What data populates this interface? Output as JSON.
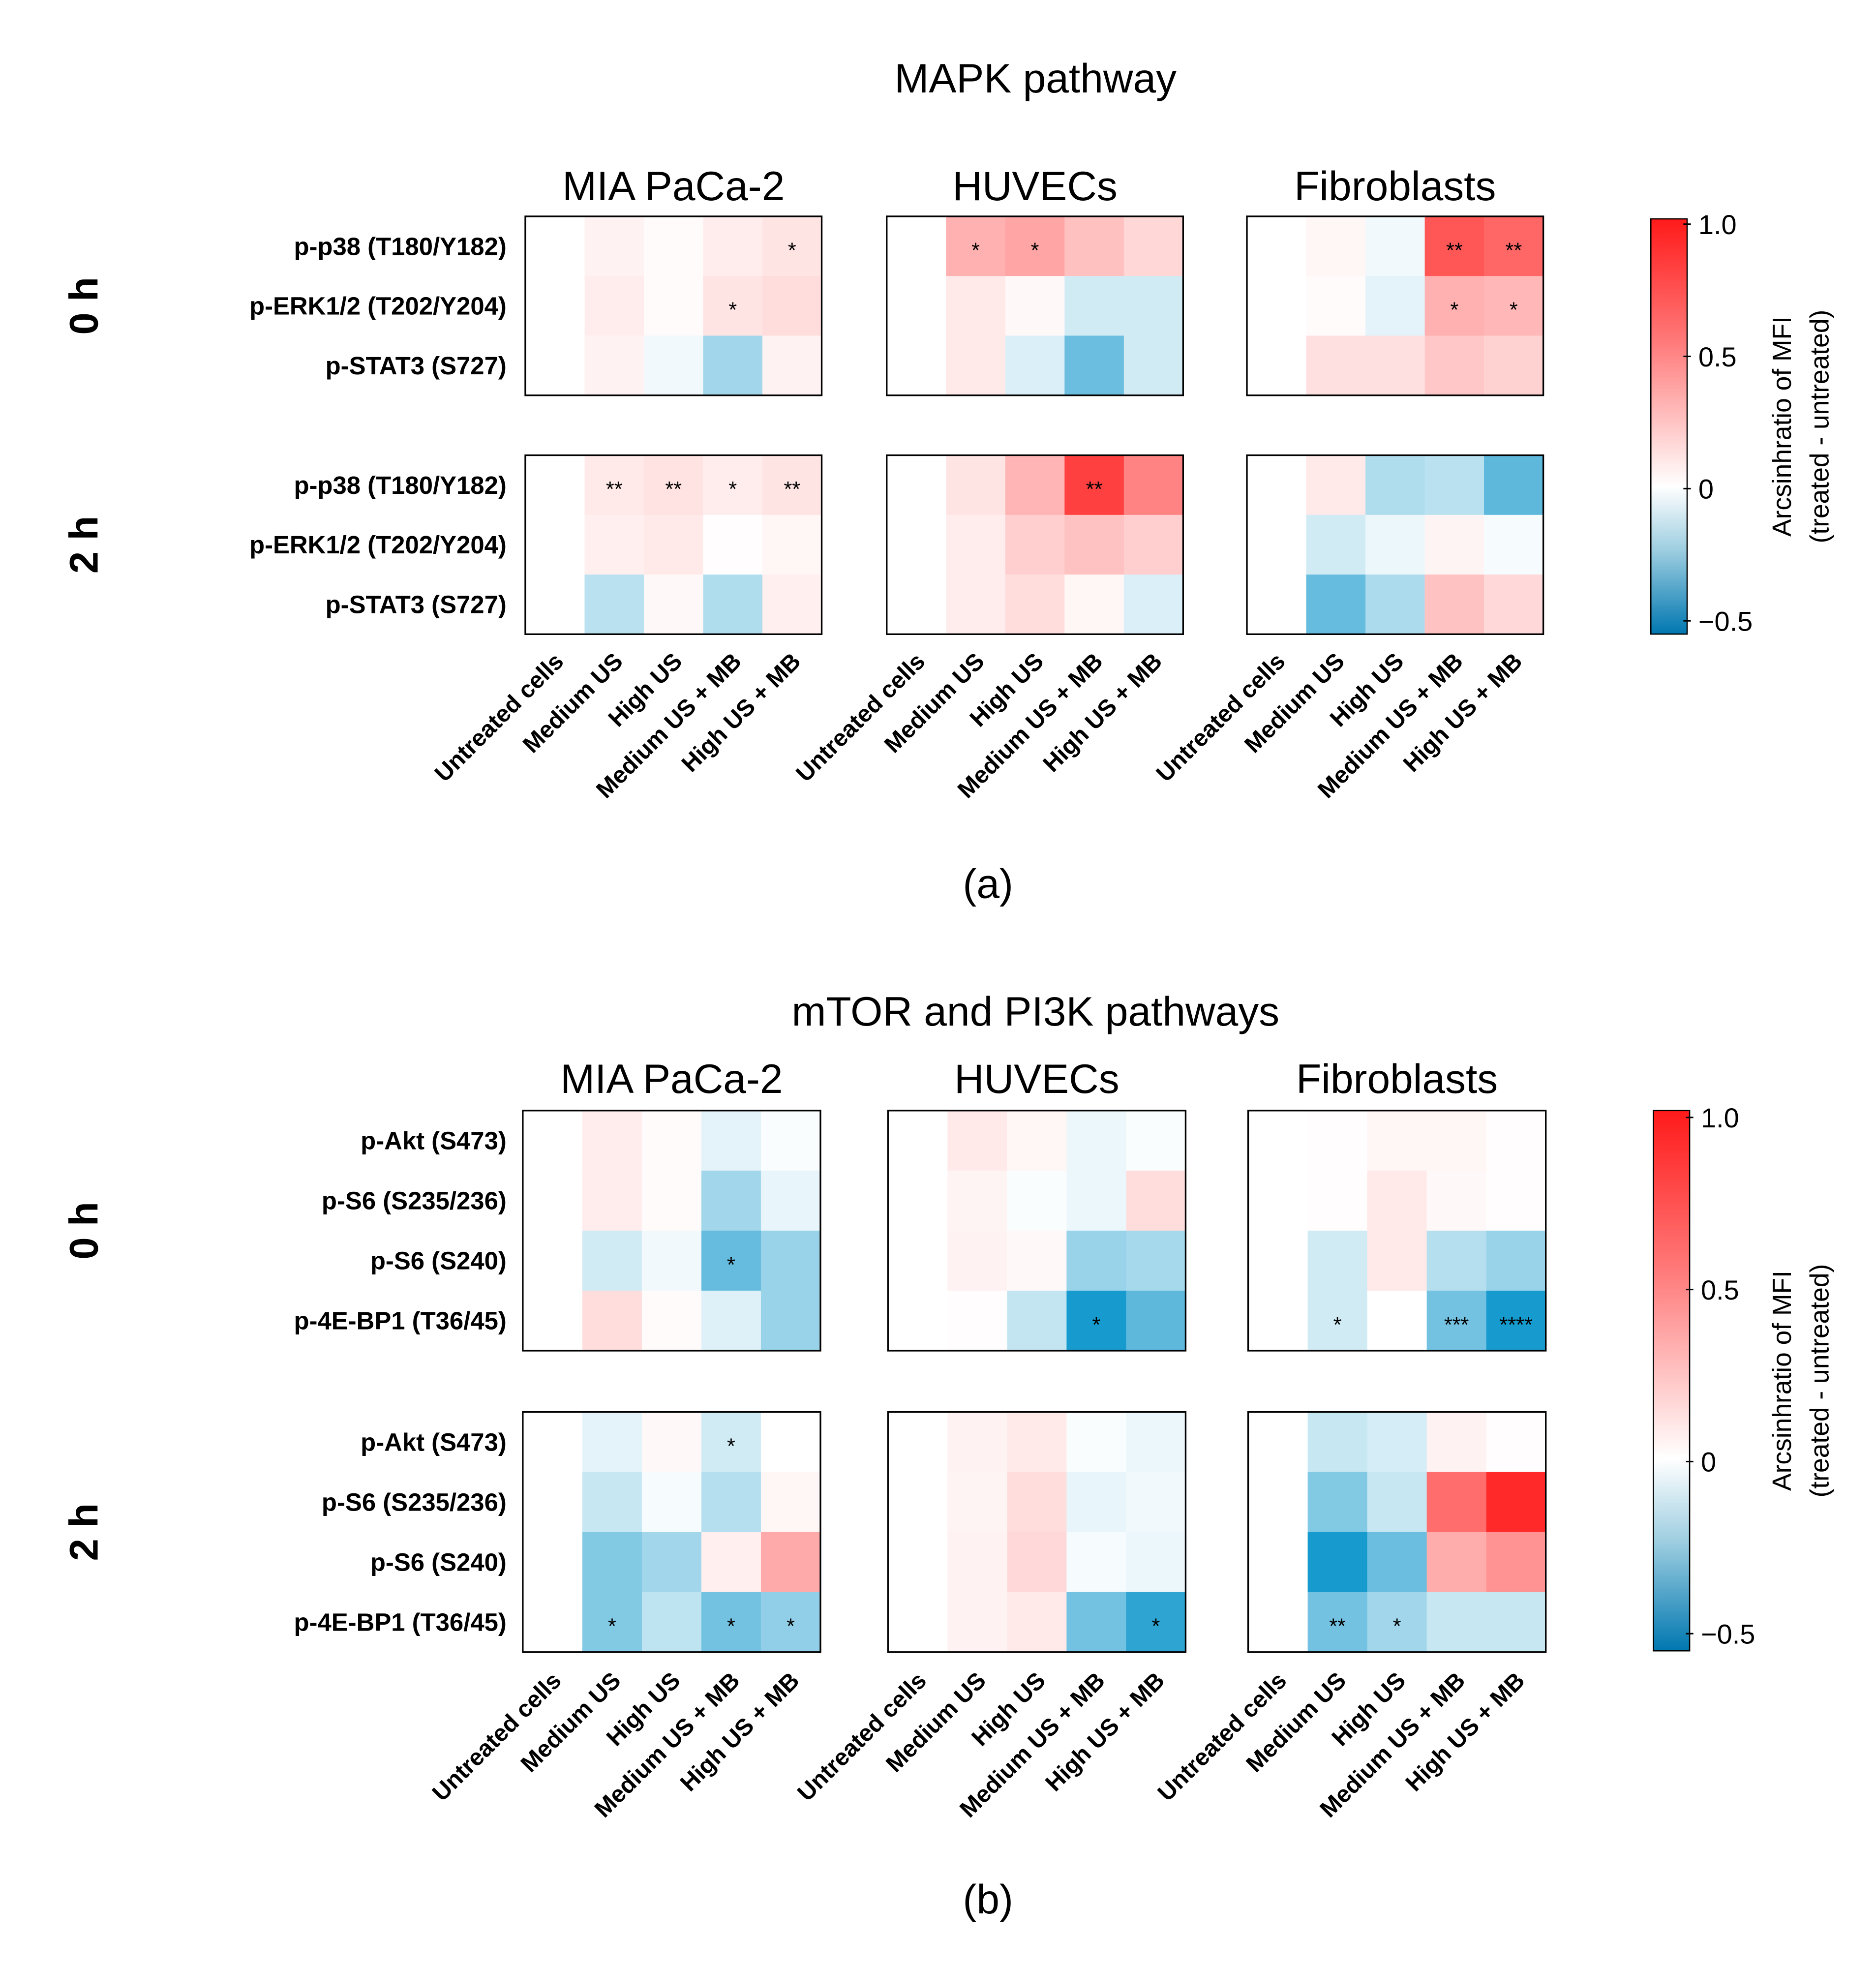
{
  "chart_data": [
    {
      "type": "heatmap",
      "title": "MAPK pathway",
      "panel_label": "(a)",
      "cell_types": [
        "MIA PaCa-2",
        "HUVECs",
        "Fibroblasts"
      ],
      "timepoints": [
        "0 h",
        "2 h"
      ],
      "rows": [
        "p-p38 (T180/Y182)",
        "p-ERK1/2 (T202/Y204)",
        "p-STAT3 (S727)"
      ],
      "columns": [
        "Untreated cells",
        "Medium US",
        "High US",
        "Medium US + MB",
        "High US + MB"
      ],
      "colorbar": {
        "label": "Arcsinhratio of MFI",
        "sublabel": "(treated - untreated)",
        "range": [
          -0.55,
          1.02
        ],
        "ticks": [
          1.0,
          0.5,
          0,
          -0.5
        ],
        "tick_labels": [
          "1.0",
          "0.5",
          "0",
          "−0.5"
        ]
      },
      "values": {
        "0 h": {
          "MIA PaCa-2": [
            [
              0,
              0.06,
              0.02,
              0.08,
              0.12
            ],
            [
              0,
              0.08,
              0.02,
              0.12,
              0.15
            ],
            [
              0,
              0.06,
              -0.03,
              -0.2,
              0.06
            ]
          ],
          "HUVECs": [
            [
              0,
              0.35,
              0.4,
              0.28,
              0.18
            ],
            [
              0,
              0.1,
              0.03,
              -0.1,
              -0.1
            ],
            [
              0,
              0.1,
              -0.08,
              -0.32,
              -0.1
            ]
          ],
          "Fibroblasts": [
            [
              0,
              0.04,
              -0.03,
              0.75,
              0.68
            ],
            [
              0,
              0.02,
              -0.06,
              0.35,
              0.32
            ],
            [
              0,
              0.14,
              0.14,
              0.25,
              0.2
            ]
          ]
        },
        "2 h": {
          "MIA PaCa-2": [
            [
              0,
              0.1,
              0.13,
              0.08,
              0.12
            ],
            [
              0,
              0.07,
              0.1,
              0.01,
              0.04
            ],
            [
              0,
              -0.15,
              0.03,
              -0.17,
              0.07
            ]
          ],
          "HUVECs": [
            [
              0,
              0.12,
              0.33,
              0.85,
              0.55
            ],
            [
              0,
              0.08,
              0.22,
              0.27,
              0.22
            ],
            [
              0,
              0.08,
              0.15,
              0.04,
              -0.08
            ]
          ],
          "Fibroblasts": [
            [
              0,
              0.1,
              -0.17,
              -0.15,
              -0.35
            ],
            [
              0,
              -0.1,
              -0.04,
              0.05,
              -0.02
            ],
            [
              0,
              -0.33,
              -0.18,
              0.27,
              0.17
            ]
          ]
        }
      },
      "significance": {
        "0 h": {
          "MIA PaCa-2": [
            [
              "",
              "",
              "",
              "",
              "*"
            ],
            [
              "",
              "",
              "",
              "*",
              ""
            ],
            [
              "",
              "",
              "",
              "",
              ""
            ]
          ],
          "HUVECs": [
            [
              "",
              "*",
              "*",
              "",
              ""
            ],
            [
              "",
              "",
              "",
              "",
              ""
            ],
            [
              "",
              "",
              "",
              "",
              ""
            ]
          ],
          "Fibroblasts": [
            [
              "",
              "",
              "",
              "**",
              "**"
            ],
            [
              "",
              "",
              "",
              "*",
              "*"
            ],
            [
              "",
              "",
              "",
              "",
              ""
            ]
          ]
        },
        "2 h": {
          "MIA PaCa-2": [
            [
              "",
              "**",
              "**",
              "*",
              "**"
            ],
            [
              "",
              "",
              "",
              "",
              ""
            ],
            [
              "",
              "",
              "",
              "",
              ""
            ]
          ],
          "HUVECs": [
            [
              "",
              "",
              "",
              "**",
              ""
            ],
            [
              "",
              "",
              "",
              "",
              ""
            ],
            [
              "",
              "",
              "",
              "",
              ""
            ]
          ],
          "Fibroblasts": [
            [
              "",
              "",
              "",
              "",
              ""
            ],
            [
              "",
              "",
              "",
              "",
              ""
            ],
            [
              "",
              "",
              "",
              "",
              ""
            ]
          ]
        }
      }
    },
    {
      "type": "heatmap",
      "title": "mTOR and PI3K pathways",
      "panel_label": "(b)",
      "cell_types": [
        "MIA PaCa-2",
        "HUVECs",
        "Fibroblasts"
      ],
      "timepoints": [
        "0 h",
        "2 h"
      ],
      "rows": [
        "p-Akt (S473)",
        "p-S6 (S235/236)",
        "p-S6 (S240)",
        "p-4E-BP1 (T36/45)"
      ],
      "columns": [
        "Untreated cells",
        "Medium US",
        "High US",
        "Medium US + MB",
        "High US + MB"
      ],
      "colorbar": {
        "label": "Arcsinhratio of MFI",
        "sublabel": "(treated - untreated)",
        "range": [
          -0.55,
          1.02
        ],
        "ticks": [
          1.0,
          0.5,
          0,
          -0.5
        ],
        "tick_labels": [
          "1.0",
          "0.5",
          "0",
          "−0.5"
        ]
      },
      "values": {
        "0 h": {
          "MIA PaCa-2": [
            [
              0,
              0.08,
              0.02,
              -0.06,
              -0.01
            ],
            [
              0,
              0.08,
              0.02,
              -0.2,
              -0.05
            ],
            [
              0,
              -0.1,
              -0.03,
              -0.33,
              -0.22
            ],
            [
              0,
              0.15,
              0.02,
              -0.07,
              -0.22
            ]
          ],
          "HUVECs": [
            [
              0,
              0.1,
              0.04,
              -0.04,
              -0.01
            ],
            [
              0,
              0.05,
              -0.01,
              -0.04,
              0.15
            ],
            [
              0,
              0.06,
              0.03,
              -0.22,
              -0.19
            ],
            [
              0,
              0.01,
              -0.13,
              -0.5,
              -0.35
            ]
          ],
          "Fibroblasts": [
            [
              0,
              0.01,
              0.04,
              0.04,
              0.01
            ],
            [
              0,
              0.01,
              0.1,
              0.03,
              0.01
            ],
            [
              0,
              -0.1,
              0.1,
              -0.16,
              -0.22
            ],
            [
              0,
              -0.1,
              0,
              -0.3,
              -0.5
            ]
          ]
        },
        "2 h": {
          "MIA PaCa-2": [
            [
              0,
              -0.06,
              0.03,
              -0.1,
              0
            ],
            [
              0,
              -0.12,
              -0.02,
              -0.16,
              0.04
            ],
            [
              0,
              -0.27,
              -0.2,
              0.07,
              0.38
            ],
            [
              0,
              -0.27,
              -0.14,
              -0.3,
              -0.24
            ]
          ],
          "HUVECs": [
            [
              0,
              0.06,
              0.1,
              -0.01,
              -0.04
            ],
            [
              0,
              0.05,
              0.15,
              -0.05,
              -0.03
            ],
            [
              0,
              0.06,
              0.17,
              -0.02,
              -0.04
            ],
            [
              0,
              0.06,
              0.1,
              -0.3,
              -0.45
            ]
          ],
          "Fibroblasts": [
            [
              0,
              -0.12,
              -0.09,
              0.06,
              0.01
            ],
            [
              0,
              -0.27,
              -0.12,
              0.65,
              0.95
            ],
            [
              0,
              -0.5,
              -0.32,
              0.37,
              0.48
            ],
            [
              0,
              -0.3,
              -0.2,
              -0.12,
              -0.12
            ]
          ]
        }
      },
      "significance": {
        "0 h": {
          "MIA PaCa-2": [
            [
              "",
              "",
              "",
              "",
              ""
            ],
            [
              "",
              "",
              "",
              "",
              ""
            ],
            [
              "",
              "",
              "",
              "*",
              ""
            ],
            [
              "",
              "",
              "",
              "",
              ""
            ]
          ],
          "HUVECs": [
            [
              "",
              "",
              "",
              "",
              ""
            ],
            [
              "",
              "",
              "",
              "",
              ""
            ],
            [
              "",
              "",
              "",
              "",
              ""
            ],
            [
              "",
              "",
              "",
              "*",
              ""
            ]
          ],
          "Fibroblasts": [
            [
              "",
              "",
              "",
              "",
              ""
            ],
            [
              "",
              "",
              "",
              "",
              ""
            ],
            [
              "",
              "",
              "",
              "",
              ""
            ],
            [
              "",
              "*",
              "",
              "***",
              "****"
            ]
          ]
        },
        "2 h": {
          "MIA PaCa-2": [
            [
              "",
              "",
              "",
              "*",
              ""
            ],
            [
              "",
              "",
              "",
              "",
              ""
            ],
            [
              "",
              "",
              "",
              "",
              ""
            ],
            [
              "",
              "*",
              "",
              "*",
              "*"
            ]
          ],
          "HUVECs": [
            [
              "",
              "",
              "",
              "",
              ""
            ],
            [
              "",
              "",
              "",
              "",
              ""
            ],
            [
              "",
              "",
              "",
              "",
              ""
            ],
            [
              "",
              "",
              "",
              "",
              "*"
            ]
          ],
          "Fibroblasts": [
            [
              "",
              "",
              "",
              "",
              ""
            ],
            [
              "",
              "",
              "",
              "",
              ""
            ],
            [
              "",
              "",
              "",
              "",
              ""
            ],
            [
              "",
              "**",
              "*",
              "",
              ""
            ]
          ]
        }
      }
    }
  ]
}
